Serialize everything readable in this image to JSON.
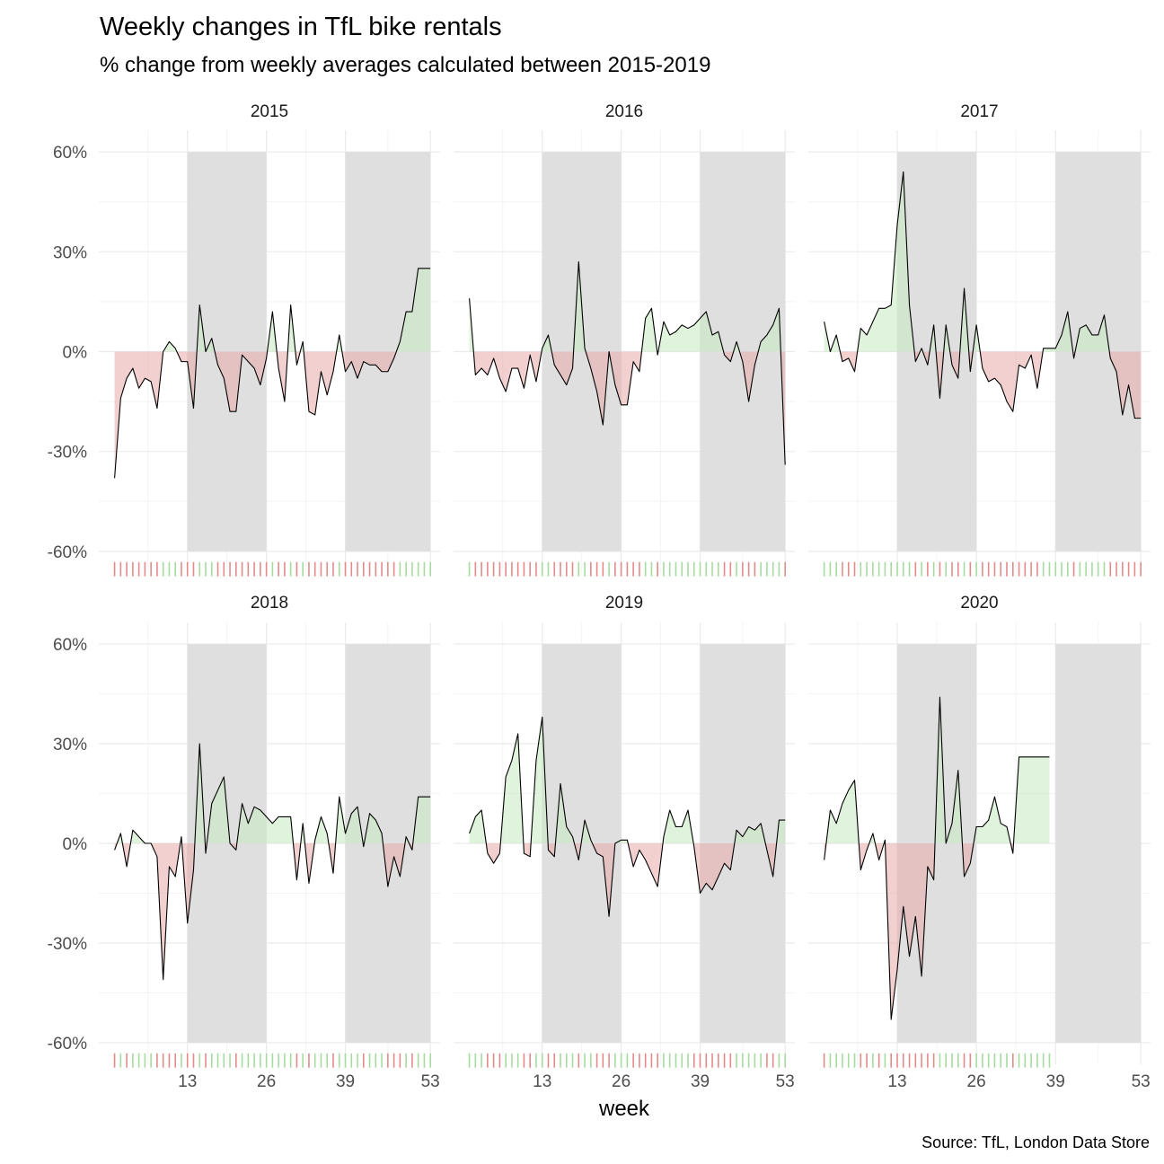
{
  "chart_data": {
    "type": "area",
    "title": "Weekly changes in TfL bike rentals",
    "subtitle": "% change from weekly averages calculated between 2015-2019",
    "xlabel": "week",
    "ylabel": "",
    "caption": "Source: TfL, London Data Store",
    "xlim": [
      0,
      53
    ],
    "ylim": [
      -60,
      60
    ],
    "x_ticks": [
      13,
      26,
      39,
      53
    ],
    "y_ticks": [
      -60,
      -30,
      0,
      30,
      60
    ],
    "y_tick_labels": [
      "-60%",
      "-30%",
      "0%",
      "30%",
      "60%"
    ],
    "shaded_week_ranges": [
      [
        13,
        26
      ],
      [
        39,
        53
      ]
    ],
    "colors": {
      "positive": "#c7e9c0",
      "negative": "#e8a9a9",
      "shade": "#dfdfdf",
      "grid": "#ebebeb",
      "line": "#000000"
    },
    "facets": [
      {
        "name": "2015",
        "weeks": [
          1,
          2,
          3,
          4,
          5,
          6,
          7,
          8,
          9,
          10,
          11,
          12,
          13,
          14,
          15,
          16,
          17,
          18,
          19,
          20,
          21,
          22,
          23,
          24,
          25,
          26,
          27,
          28,
          29,
          30,
          31,
          32,
          33,
          34,
          35,
          36,
          37,
          38,
          39,
          40,
          41,
          42,
          43,
          44,
          45,
          46,
          47,
          48,
          49,
          50,
          51,
          52,
          53
        ],
        "values": [
          -38,
          -14,
          -8,
          -5,
          -11,
          -8,
          -9,
          -17,
          0,
          3,
          1,
          -3,
          -3,
          -17,
          14,
          0,
          4,
          -4,
          -8,
          -18,
          -18,
          -1,
          -3,
          -5,
          -10,
          -2,
          12,
          -5,
          -15,
          14,
          -4,
          3,
          -18,
          -19,
          -6,
          -13,
          -6,
          5,
          -6,
          -3,
          -8,
          -3,
          -4,
          -4,
          -6,
          -6,
          -2,
          3,
          12,
          12,
          25,
          25,
          25
        ]
      },
      {
        "name": "2016",
        "weeks": [
          1,
          2,
          3,
          4,
          5,
          6,
          7,
          8,
          9,
          10,
          11,
          12,
          13,
          14,
          15,
          16,
          17,
          18,
          19,
          20,
          21,
          22,
          23,
          24,
          25,
          26,
          27,
          28,
          29,
          30,
          31,
          32,
          33,
          34,
          35,
          36,
          37,
          38,
          39,
          40,
          41,
          42,
          43,
          44,
          45,
          46,
          47,
          48,
          49,
          50,
          51,
          52,
          53
        ],
        "values": [
          16,
          -7,
          -5,
          -7,
          -2,
          -8,
          -12,
          -5,
          -5,
          -11,
          -1,
          -9,
          1,
          5,
          -4,
          -7,
          -10,
          -5,
          27,
          1,
          -5,
          -12,
          -22,
          0,
          -10,
          -16,
          -16,
          -3,
          -6,
          10,
          13,
          -1,
          9,
          5,
          6,
          8,
          7,
          8,
          10,
          12,
          5,
          6,
          -1,
          -3,
          3,
          -3,
          -15,
          -4,
          3,
          5,
          8,
          13,
          -34
        ]
      },
      {
        "name": "2017",
        "weeks": [
          1,
          2,
          3,
          4,
          5,
          6,
          7,
          8,
          9,
          10,
          11,
          12,
          13,
          14,
          15,
          16,
          17,
          18,
          19,
          20,
          21,
          22,
          23,
          24,
          25,
          26,
          27,
          28,
          29,
          30,
          31,
          32,
          33,
          34,
          35,
          36,
          37,
          38,
          39,
          40,
          41,
          42,
          43,
          44,
          45,
          46,
          47,
          48,
          49,
          50,
          51,
          52,
          53
        ],
        "values": [
          9,
          0,
          5,
          -3,
          -2,
          -6,
          7,
          5,
          9,
          13,
          13,
          14,
          38,
          54,
          14,
          -3,
          1,
          -4,
          8,
          -14,
          8,
          -4,
          -8,
          19,
          -6,
          8,
          -5,
          -9,
          -8,
          -10,
          -15,
          -18,
          -4,
          -5,
          -1,
          -11,
          1,
          1,
          1,
          5,
          12,
          -2,
          7,
          8,
          5,
          5,
          11,
          -2,
          -6,
          -19,
          -10,
          -20,
          -20
        ]
      },
      {
        "name": "2018",
        "weeks": [
          1,
          2,
          3,
          4,
          5,
          6,
          7,
          8,
          9,
          10,
          11,
          12,
          13,
          14,
          15,
          16,
          17,
          18,
          19,
          20,
          21,
          22,
          23,
          24,
          25,
          26,
          27,
          28,
          29,
          30,
          31,
          32,
          33,
          34,
          35,
          36,
          37,
          38,
          39,
          40,
          41,
          42,
          43,
          44,
          45,
          46,
          47,
          48,
          49,
          50,
          51,
          52,
          53
        ],
        "values": [
          -2,
          3,
          -7,
          4,
          2,
          0,
          0,
          -4,
          -41,
          -7,
          -10,
          2,
          -24,
          -8,
          30,
          -3,
          12,
          16,
          20,
          0,
          -2,
          12,
          6,
          11,
          10,
          8,
          6,
          8,
          8,
          8,
          -11,
          6,
          -12,
          1,
          8,
          3,
          -9,
          14,
          3,
          9,
          11,
          -1,
          9,
          7,
          3,
          -13,
          -4,
          -10,
          2,
          -2,
          14,
          14,
          14
        ]
      },
      {
        "name": "2019",
        "weeks": [
          1,
          2,
          3,
          4,
          5,
          6,
          7,
          8,
          9,
          10,
          11,
          12,
          13,
          14,
          15,
          16,
          17,
          18,
          19,
          20,
          21,
          22,
          23,
          24,
          25,
          26,
          27,
          28,
          29,
          30,
          31,
          32,
          33,
          34,
          35,
          36,
          37,
          38,
          39,
          40,
          41,
          42,
          43,
          44,
          45,
          46,
          47,
          48,
          49,
          50,
          51,
          52,
          53
        ],
        "values": [
          3,
          8,
          10,
          -3,
          -6,
          -3,
          20,
          25,
          33,
          -3,
          -4,
          25,
          38,
          -2,
          -4,
          18,
          5,
          2,
          -5,
          7,
          1,
          -3,
          -4,
          -22,
          0,
          1,
          1,
          -7,
          -2,
          -5,
          -9,
          -13,
          2,
          10,
          5,
          5,
          10,
          -1,
          -15,
          -12,
          -14,
          -10,
          -6,
          -8,
          4,
          2,
          5,
          4,
          6,
          -2,
          -10,
          7,
          7
        ]
      },
      {
        "name": "2020",
        "weeks": [
          1,
          2,
          3,
          4,
          5,
          6,
          7,
          8,
          9,
          10,
          11,
          12,
          13,
          14,
          15,
          16,
          17,
          18,
          19,
          20,
          21,
          22,
          23,
          24,
          25,
          26,
          27,
          28,
          29,
          30,
          31,
          32,
          33,
          34,
          35,
          36,
          37,
          38
        ],
        "values": [
          -5,
          10,
          6,
          12,
          16,
          19,
          -8,
          -2,
          3,
          -5,
          1,
          -53,
          -38,
          -19,
          -34,
          -22,
          -40,
          -7,
          -11,
          44,
          0,
          6,
          22,
          -10,
          -6,
          5,
          5,
          7,
          14,
          6,
          5,
          -3,
          26,
          26,
          26,
          26,
          26,
          26
        ]
      }
    ]
  }
}
